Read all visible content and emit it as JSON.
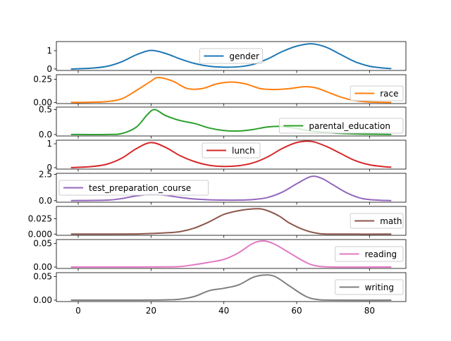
{
  "chart_data": {
    "type": "line",
    "xlim": [
      -6,
      90
    ],
    "x_ticks": [
      "0",
      "20",
      "40",
      "60",
      "80"
    ],
    "x_tick_values": [
      0,
      20,
      40,
      60,
      80
    ],
    "panels": [
      {
        "name": "gender",
        "color": "#1f77b4",
        "ylim": [
          -0.08,
          1.5
        ],
        "y_ticks": [
          "0",
          "1"
        ],
        "y_tick_values": [
          0,
          1
        ],
        "legend_loc": "center",
        "points": [
          [
            -2,
            0
          ],
          [
            4,
            0.05
          ],
          [
            8,
            0.15
          ],
          [
            12,
            0.4
          ],
          [
            16,
            0.78
          ],
          [
            20,
            1.02
          ],
          [
            24,
            0.85
          ],
          [
            28,
            0.55
          ],
          [
            32,
            0.3
          ],
          [
            36,
            0.15
          ],
          [
            40,
            0.1
          ],
          [
            44,
            0.12
          ],
          [
            48,
            0.25
          ],
          [
            52,
            0.55
          ],
          [
            56,
            0.95
          ],
          [
            60,
            1.25
          ],
          [
            64,
            1.38
          ],
          [
            68,
            1.2
          ],
          [
            72,
            0.8
          ],
          [
            76,
            0.4
          ],
          [
            80,
            0.15
          ],
          [
            84,
            0.05
          ],
          [
            86,
            0.02
          ]
        ]
      },
      {
        "name": "race",
        "color": "#ff7f0e",
        "ylim": [
          -0.012,
          0.3
        ],
        "y_ticks": [
          "0.00",
          "0.25"
        ],
        "y_tick_values": [
          0,
          0.25
        ],
        "legend_loc": "lower right",
        "points": [
          [
            -2,
            0
          ],
          [
            4,
            0.003
          ],
          [
            8,
            0.01
          ],
          [
            12,
            0.04
          ],
          [
            16,
            0.13
          ],
          [
            20,
            0.23
          ],
          [
            22,
            0.27
          ],
          [
            26,
            0.23
          ],
          [
            30,
            0.15
          ],
          [
            34,
            0.15
          ],
          [
            38,
            0.2
          ],
          [
            42,
            0.22
          ],
          [
            46,
            0.2
          ],
          [
            50,
            0.15
          ],
          [
            54,
            0.14
          ],
          [
            58,
            0.15
          ],
          [
            62,
            0.17
          ],
          [
            65,
            0.16
          ],
          [
            68,
            0.12
          ],
          [
            72,
            0.06
          ],
          [
            76,
            0.02
          ],
          [
            80,
            0.005
          ],
          [
            86,
            0
          ]
        ]
      },
      {
        "name": "parental_education",
        "color": "#2ca02c",
        "ylim": [
          -0.03,
          0.55
        ],
        "y_ticks": [
          "0.0",
          "0.5"
        ],
        "y_tick_values": [
          0,
          0.5
        ],
        "legend_loc": "lower right",
        "points": [
          [
            -2,
            0
          ],
          [
            8,
            0
          ],
          [
            12,
            0.02
          ],
          [
            16,
            0.15
          ],
          [
            19,
            0.4
          ],
          [
            21,
            0.5
          ],
          [
            24,
            0.38
          ],
          [
            28,
            0.28
          ],
          [
            32,
            0.22
          ],
          [
            36,
            0.13
          ],
          [
            40,
            0.08
          ],
          [
            44,
            0.07
          ],
          [
            48,
            0.1
          ],
          [
            52,
            0.15
          ],
          [
            56,
            0.16
          ],
          [
            60,
            0.12
          ],
          [
            64,
            0.07
          ],
          [
            70,
            0.03
          ],
          [
            76,
            0.01
          ],
          [
            86,
            0
          ]
        ]
      },
      {
        "name": "lunch",
        "color": "#d62728",
        "ylim": [
          -0.06,
          1.15
        ],
        "y_ticks": [
          "0",
          "1"
        ],
        "y_tick_values": [
          0,
          1
        ],
        "legend_loc": "upper center",
        "points": [
          [
            -2,
            0
          ],
          [
            4,
            0.05
          ],
          [
            8,
            0.15
          ],
          [
            12,
            0.4
          ],
          [
            16,
            0.8
          ],
          [
            20,
            1.05
          ],
          [
            24,
            0.85
          ],
          [
            28,
            0.5
          ],
          [
            32,
            0.25
          ],
          [
            36,
            0.1
          ],
          [
            40,
            0.05
          ],
          [
            44,
            0.08
          ],
          [
            48,
            0.2
          ],
          [
            52,
            0.45
          ],
          [
            56,
            0.8
          ],
          [
            60,
            1.05
          ],
          [
            64,
            1.1
          ],
          [
            68,
            0.9
          ],
          [
            72,
            0.6
          ],
          [
            76,
            0.3
          ],
          [
            80,
            0.12
          ],
          [
            84,
            0.04
          ],
          [
            86,
            0.02
          ]
        ]
      },
      {
        "name": "test_preparation_course",
        "color": "#9467bd",
        "ylim": [
          -0.15,
          2.6
        ],
        "y_ticks": [
          "0.0",
          "2.5"
        ],
        "y_tick_values": [
          0,
          2.5
        ],
        "legend_loc": "center left",
        "points": [
          [
            -2,
            0
          ],
          [
            8,
            0.05
          ],
          [
            12,
            0.2
          ],
          [
            16,
            0.45
          ],
          [
            20,
            0.6
          ],
          [
            24,
            0.5
          ],
          [
            28,
            0.3
          ],
          [
            32,
            0.15
          ],
          [
            36,
            0.08
          ],
          [
            40,
            0.05
          ],
          [
            44,
            0.05
          ],
          [
            48,
            0.1
          ],
          [
            52,
            0.3
          ],
          [
            56,
            0.8
          ],
          [
            60,
            1.6
          ],
          [
            64,
            2.3
          ],
          [
            67,
            2.1
          ],
          [
            70,
            1.5
          ],
          [
            74,
            0.7
          ],
          [
            78,
            0.2
          ],
          [
            82,
            0.05
          ],
          [
            86,
            0
          ]
        ]
      },
      {
        "name": "math",
        "color": "#8c564b",
        "ylim": [
          -0.002,
          0.045
        ],
        "y_ticks": [
          "0.000",
          "0.025"
        ],
        "y_tick_values": [
          0,
          0.025
        ],
        "legend_loc": "center right",
        "points": [
          [
            -2,
            0
          ],
          [
            8,
            0
          ],
          [
            16,
            0.0002
          ],
          [
            20,
            0.001
          ],
          [
            24,
            0.002
          ],
          [
            28,
            0.004
          ],
          [
            32,
            0.01
          ],
          [
            36,
            0.02
          ],
          [
            40,
            0.032
          ],
          [
            44,
            0.038
          ],
          [
            48,
            0.041
          ],
          [
            51,
            0.04
          ],
          [
            55,
            0.03
          ],
          [
            58,
            0.018
          ],
          [
            62,
            0.007
          ],
          [
            66,
            0.001
          ],
          [
            70,
            0
          ],
          [
            86,
            0
          ]
        ]
      },
      {
        "name": "reading",
        "color": "#e377c2",
        "ylim": [
          -0.003,
          0.058
        ],
        "y_ticks": [
          "0.00",
          "0.05"
        ],
        "y_tick_values": [
          0,
          0.05
        ],
        "legend_loc": "center right",
        "points": [
          [
            -2,
            0
          ],
          [
            16,
            0
          ],
          [
            20,
            0.0002
          ],
          [
            24,
            0.0003
          ],
          [
            28,
            0.001
          ],
          [
            32,
            0.005
          ],
          [
            36,
            0.01
          ],
          [
            40,
            0.016
          ],
          [
            44,
            0.03
          ],
          [
            48,
            0.05
          ],
          [
            51,
            0.055
          ],
          [
            54,
            0.048
          ],
          [
            58,
            0.03
          ],
          [
            62,
            0.012
          ],
          [
            65,
            0.003
          ],
          [
            70,
            0
          ],
          [
            86,
            0
          ]
        ]
      },
      {
        "name": "writing",
        "color": "#7f7f7f",
        "ylim": [
          -0.003,
          0.058
        ],
        "y_ticks": [
          "0.00",
          "0.05"
        ],
        "y_tick_values": [
          0,
          0.05
        ],
        "legend_loc": "center right",
        "points": [
          [
            -2,
            0
          ],
          [
            16,
            0
          ],
          [
            20,
            0.0002
          ],
          [
            24,
            0.0005
          ],
          [
            28,
            0.002
          ],
          [
            32,
            0.008
          ],
          [
            36,
            0.02
          ],
          [
            40,
            0.025
          ],
          [
            44,
            0.032
          ],
          [
            48,
            0.048
          ],
          [
            51,
            0.053
          ],
          [
            54,
            0.05
          ],
          [
            58,
            0.03
          ],
          [
            62,
            0.01
          ],
          [
            65,
            0.002
          ],
          [
            70,
            0
          ],
          [
            86,
            0
          ]
        ]
      }
    ]
  }
}
